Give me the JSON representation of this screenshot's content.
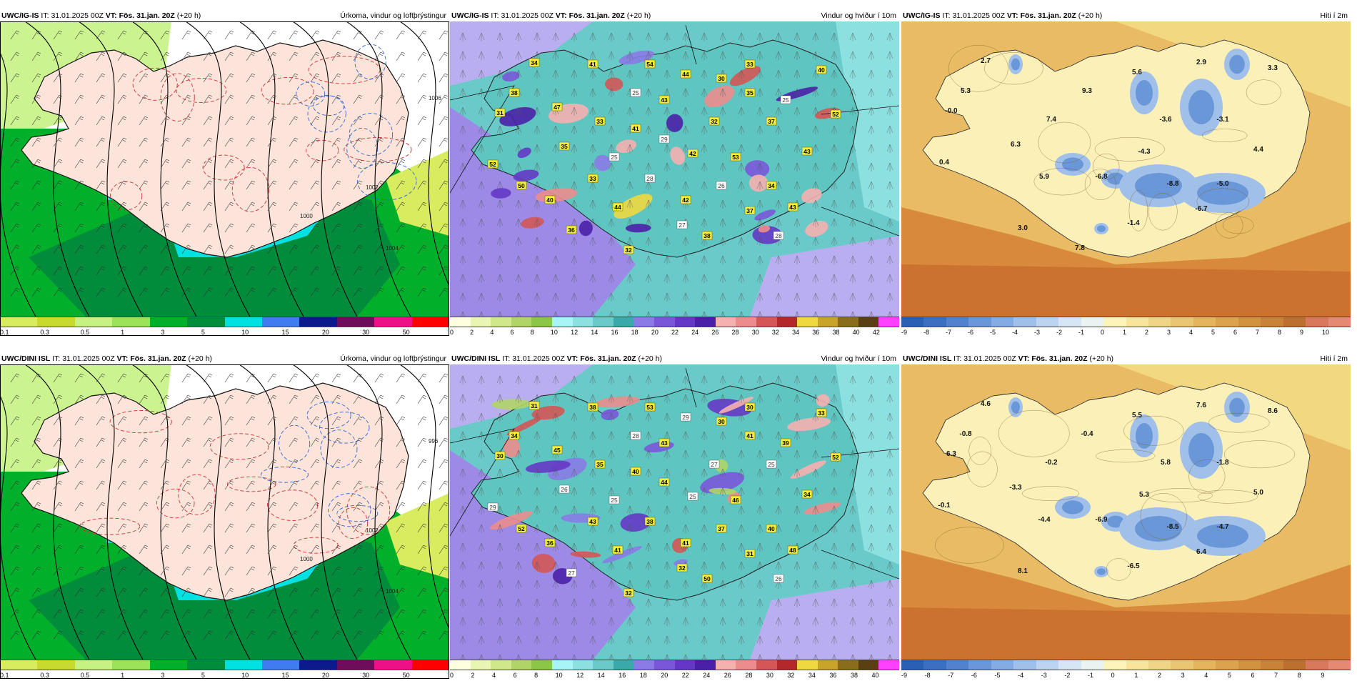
{
  "rows": [
    {
      "model": "UWC/IG-IS",
      "panels": [
        {
          "it_label": "IT:",
          "it": "31.01.2025 00Z",
          "vt_label": "VT:",
          "vt": "Fös. 31.jan. 20Z",
          "lead": "(+20 h)",
          "field": "Úrkoma, vindur og loftþrýstingur",
          "isobars": [
            "1000",
            "1002",
            "1004",
            "1006"
          ],
          "ticks": [
            "0.1",
            "0.3",
            "0.5",
            "1",
            "3",
            "5",
            "10",
            "15",
            "20",
            "30",
            "50"
          ]
        },
        {
          "it_label": "IT:",
          "it": "31.01.2025 00Z",
          "vt_label": "VT:",
          "vt": "Fös. 31.jan. 20Z",
          "lead": "(+20 h)",
          "field": "Vindur og hviður í 10m",
          "gusts": [
            "34",
            "38",
            "31",
            "33",
            "25",
            "44",
            "33",
            "40",
            "32",
            "37",
            "35",
            "42",
            "43",
            "52",
            "33",
            "28",
            "26",
            "34",
            "37",
            "27",
            "36",
            "32",
            "25",
            "29",
            "44",
            "47",
            "53",
            "50",
            "43",
            "38",
            "41",
            "54",
            "52",
            "42",
            "41",
            "35",
            "40",
            "43",
            "30",
            "25",
            "28"
          ],
          "ticks": [
            "0",
            "2",
            "4",
            "6",
            "8",
            "10",
            "12",
            "14",
            "16",
            "18",
            "20",
            "22",
            "24",
            "26",
            "28",
            "30",
            "32",
            "34",
            "36",
            "38",
            "40",
            "42"
          ]
        },
        {
          "it_label": "IT:",
          "it": "31.01.2025 00Z",
          "vt_label": "VT:",
          "vt": "Fös. 31.jan. 20Z",
          "lead": "(+20 h)",
          "field": "Hiti í 2m",
          "temps": [
            "2.7",
            "5.3",
            "-0.0",
            "7.4",
            "9.3",
            "5.6",
            "2.9",
            "3.3",
            "-3.6",
            "-3.1",
            "6.3",
            "-4.3",
            "4.4",
            "0.4",
            "5.9",
            "-6.8",
            "-8.8",
            "-5.0",
            "-6.7",
            "-1.4",
            "3.0",
            "7.8"
          ],
          "ticks": [
            "-9",
            "-8",
            "-7",
            "-6",
            "-5",
            "-4",
            "-3",
            "-2",
            "-1",
            "0",
            "1",
            "2",
            "3",
            "4",
            "5",
            "6",
            "7",
            "8",
            "9",
            "10"
          ]
        }
      ]
    },
    {
      "model": "UWC/DINI ISL",
      "panels": [
        {
          "it_label": "IT:",
          "it": "31.01.2025 00Z",
          "vt_label": "VT:",
          "vt": "Fös. 31.jan. 20Z",
          "lead": "(+20 h)",
          "field": "Úrkoma, vindur og loftþrýstingur",
          "isobars": [
            "1000",
            "1002",
            "1004",
            "996"
          ],
          "ticks": [
            "0.1",
            "0.3",
            "0.5",
            "1",
            "3",
            "5",
            "10",
            "15",
            "20",
            "30",
            "50"
          ]
        },
        {
          "it_label": "IT:",
          "it": "31.01.2025 00Z",
          "vt_label": "VT:",
          "vt": "Fös. 31.jan. 20Z",
          "lead": "(+20 h)",
          "field": "Vindur og hviður í 10m",
          "gusts": [
            "31",
            "34",
            "30",
            "35",
            "28",
            "29",
            "30",
            "33",
            "27",
            "25",
            "26",
            "25",
            "34",
            "29",
            "43",
            "38",
            "37",
            "40",
            "31",
            "32",
            "27",
            "32",
            "39",
            "44",
            "41",
            "45",
            "46",
            "52",
            "48",
            "50",
            "38",
            "53",
            "52",
            "41",
            "40",
            "41",
            "36",
            "43",
            "30",
            "25",
            "26"
          ],
          "ticks": [
            "0",
            "2",
            "4",
            "6",
            "8",
            "10",
            "12",
            "14",
            "16",
            "18",
            "20",
            "22",
            "24",
            "26",
            "28",
            "30",
            "32",
            "34",
            "36",
            "38",
            "40"
          ]
        },
        {
          "it_label": "IT:",
          "it": "31.01.2025 00Z",
          "vt_label": "VT:",
          "vt": "Fös. 31.jan. 20Z",
          "lead": "(+20 h)",
          "field": "Hiti í 2m",
          "temps": [
            "4.6",
            "-0.8",
            "6.3",
            "-0.2",
            "-0.4",
            "5.5",
            "7.6",
            "8.6",
            "5.8",
            "-1.8",
            "-3.3",
            "5.3",
            "5.0",
            "-0.1",
            "-4.4",
            "-6.9",
            "-8.5",
            "-4.7",
            "6.4",
            "-6.5",
            "8.1"
          ],
          "ticks": [
            "-9",
            "-8",
            "-7",
            "-6",
            "-5",
            "-4",
            "-3",
            "-2",
            "-1",
            "0",
            "1",
            "2",
            "3",
            "4",
            "5",
            "6",
            "7",
            "8",
            "9"
          ]
        }
      ]
    }
  ],
  "colors": {
    "precip": [
      "#d9ec5f",
      "#c8d92f",
      "#c5f283",
      "#9be45a",
      "#00b02a",
      "#008c3a",
      "#00e2e2",
      "#3f7cf0",
      "#0b1b8c",
      "#6e0d5c",
      "#ee1088",
      "#ff0000"
    ],
    "wind": [
      "#ffffe0",
      "#e8f5b3",
      "#cfe88a",
      "#b0d566",
      "#8cc646",
      "#a8f5f5",
      "#8ce0e0",
      "#6acaca",
      "#3aa9a9",
      "#8a7be6",
      "#7a57d9",
      "#6438c4",
      "#4b20a8",
      "#f5b0b0",
      "#ec8c8c",
      "#d45656",
      "#b32929",
      "#f0d840",
      "#c8a42a",
      "#8a6d1a",
      "#5a3f12",
      "#ff40ff"
    ],
    "temp": [
      "#2a5fb4",
      "#3d6fc0",
      "#5282cd",
      "#6a97d8",
      "#84abe2",
      "#a0c0ea",
      "#bdd4f1",
      "#d7e6f5",
      "#e9f3f2",
      "#fdf5b8",
      "#f7e59c",
      "#f1d586",
      "#ebc672",
      "#e4b45e",
      "#dca24d",
      "#d39240",
      "#c98236",
      "#bd6f2d",
      "#d9785a",
      "#e58a70"
    ]
  }
}
